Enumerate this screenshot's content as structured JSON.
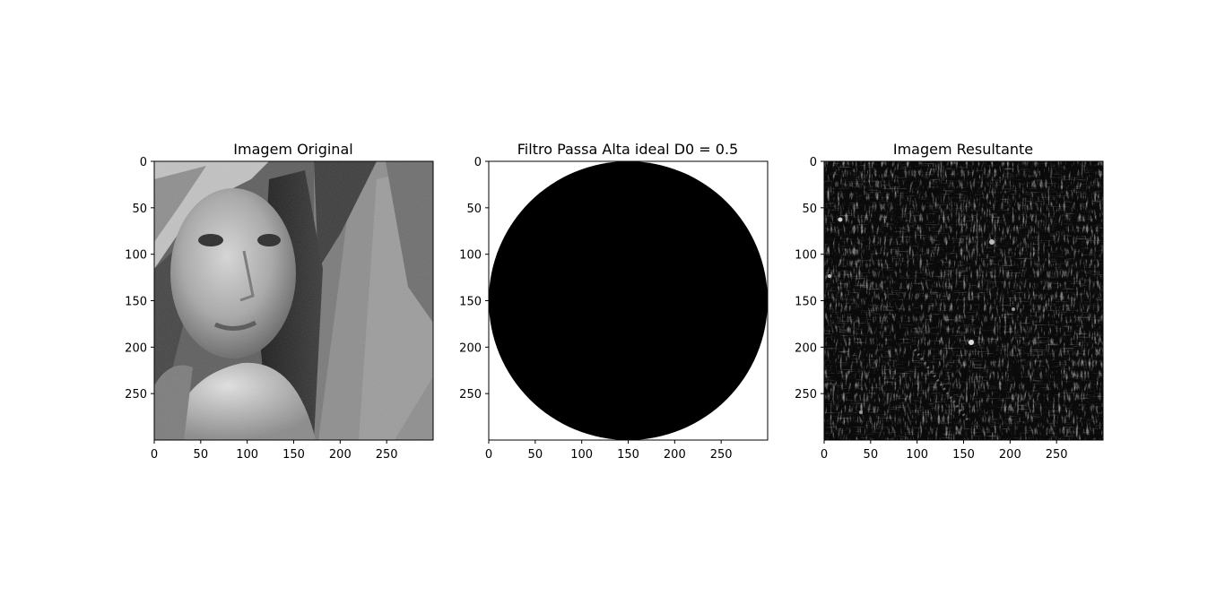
{
  "chart_data": [
    {
      "type": "image",
      "title": "Imagem Original",
      "image": "grayscale-portrait-photo",
      "xlim": [
        0,
        300
      ],
      "ylim": [
        300,
        0
      ],
      "xticks": [
        "0",
        "50",
        "100",
        "150",
        "200",
        "250"
      ],
      "yticks": [
        "0",
        "50",
        "100",
        "150",
        "200",
        "250"
      ]
    },
    {
      "type": "image",
      "title": "Filtro Passa Alta ideal D0 = 0.5",
      "image": "ideal-high-pass-mask",
      "filter": {
        "center": [
          150,
          150
        ],
        "radius": 150,
        "inside_color": "#000000",
        "outside_color": "#ffffff"
      },
      "xlim": [
        0,
        300
      ],
      "ylim": [
        300,
        0
      ],
      "xticks": [
        "0",
        "50",
        "100",
        "150",
        "200",
        "250"
      ],
      "yticks": [
        "0",
        "50",
        "100",
        "150",
        "200",
        "250"
      ]
    },
    {
      "type": "image",
      "title": "Imagem Resultante",
      "image": "high-pass-filtered-edges",
      "xlim": [
        0,
        300
      ],
      "ylim": [
        300,
        0
      ],
      "xticks": [
        "0",
        "50",
        "100",
        "150",
        "200",
        "250"
      ],
      "yticks": [
        "0",
        "50",
        "100",
        "150",
        "200",
        "250"
      ]
    }
  ]
}
